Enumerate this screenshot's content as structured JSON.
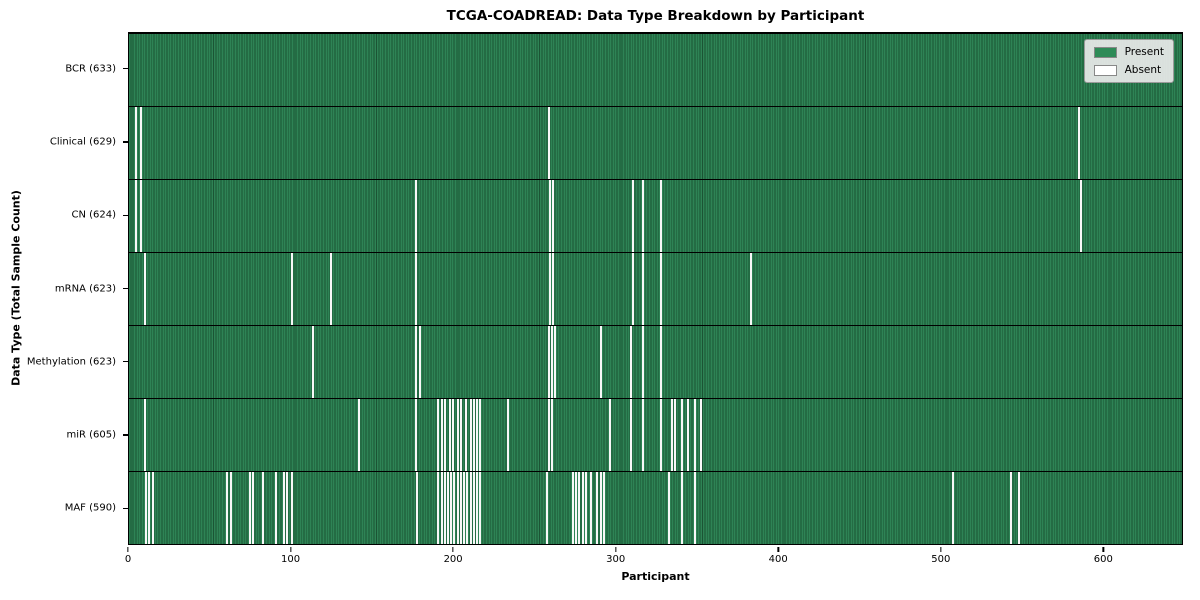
{
  "chart_data": {
    "type": "heatmap",
    "title": "TCGA-COADREAD: Data Type Breakdown by Participant",
    "xlabel": "Participant",
    "ylabel": "Data Type (Total Sample Count)",
    "x_ticks": [
      0,
      100,
      200,
      300,
      400,
      500,
      600
    ],
    "x_max": 649,
    "grid": false,
    "legend_position": "upper right",
    "legend": [
      {
        "label": "Present",
        "color": "#2e8b57"
      },
      {
        "label": "Absent",
        "color": "#ffffff"
      }
    ],
    "rows": [
      {
        "name": "bcr",
        "label": "BCR (633)",
        "total": 633,
        "absent": []
      },
      {
        "name": "clinical",
        "label": "Clinical (629)",
        "total": 629,
        "absent": [
          4,
          7,
          258,
          585
        ]
      },
      {
        "name": "cn",
        "label": "CN (624)",
        "total": 624,
        "absent": [
          4,
          7,
          176,
          259,
          261,
          310,
          316,
          327,
          586
        ]
      },
      {
        "name": "mrna",
        "label": "mRNA (623)",
        "total": 623,
        "absent": [
          9,
          100,
          124,
          176,
          259,
          261,
          310,
          316,
          327,
          383
        ]
      },
      {
        "name": "methylation",
        "label": "Methylation (623)",
        "total": 623,
        "absent": [
          113,
          176,
          179,
          258,
          260,
          262,
          290,
          309,
          316,
          327
        ]
      },
      {
        "name": "mir",
        "label": "miR (605)",
        "total": 605,
        "absent": [
          9,
          141,
          176,
          190,
          192,
          194,
          197,
          199,
          202,
          204,
          207,
          210,
          212,
          214,
          216,
          233,
          258,
          260,
          296,
          309,
          316,
          327,
          334,
          336,
          340,
          344,
          348,
          352
        ]
      },
      {
        "name": "maf",
        "label": "MAF (590)",
        "total": 590,
        "absent": [
          10,
          12,
          14,
          60,
          62,
          74,
          76,
          82,
          90,
          95,
          97,
          100,
          177,
          190,
          192,
          194,
          196,
          198,
          200,
          202,
          204,
          206,
          208,
          210,
          212,
          214,
          216,
          257,
          273,
          275,
          277,
          279,
          281,
          284,
          288,
          290,
          292,
          332,
          340,
          348,
          507,
          543,
          548
        ]
      }
    ]
  }
}
